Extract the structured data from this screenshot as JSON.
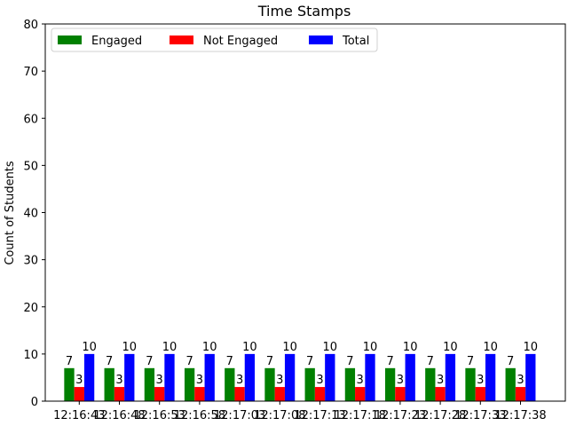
{
  "chart_data": {
    "type": "bar",
    "title": "Time Stamps",
    "xlabel": "",
    "ylabel": "Count of Students",
    "ylim": [
      0,
      80
    ],
    "yticks": [
      0,
      10,
      20,
      30,
      40,
      50,
      60,
      70,
      80
    ],
    "categories": [
      "12:16:43",
      "12:16:48",
      "12:16:53",
      "12:16:58",
      "12:17:03",
      "12:17:08",
      "12:17:13",
      "12:17:18",
      "12:17:23",
      "12:17:28",
      "12:17:33",
      "12:17:38"
    ],
    "series": [
      {
        "name": "Engaged",
        "color": "#008000",
        "values": [
          7,
          7,
          7,
          7,
          7,
          7,
          7,
          7,
          7,
          7,
          7,
          7
        ]
      },
      {
        "name": "Not Engaged",
        "color": "#ff0000",
        "values": [
          3,
          3,
          3,
          3,
          3,
          3,
          3,
          3,
          3,
          3,
          3,
          3
        ]
      },
      {
        "name": "Total",
        "color": "#0000ff",
        "values": [
          10,
          10,
          10,
          10,
          10,
          10,
          10,
          10,
          10,
          10,
          10,
          10
        ]
      }
    ],
    "legend": "top-left",
    "grid": false
  }
}
